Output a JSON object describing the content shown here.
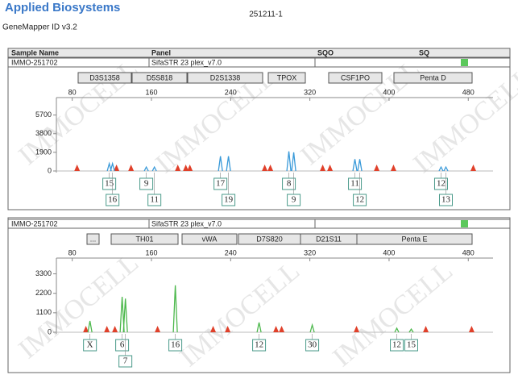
{
  "header": {
    "brand": "Applied Biosystems",
    "software": "GeneMapper ID v3.2",
    "run_id": "251211-1"
  },
  "table_header": [
    "Sample Name",
    "Panel",
    "SQO",
    "SQ"
  ],
  "watermark": "IMMOCELL",
  "chart_data": [
    {
      "type": "electropherogram",
      "sample_name": "IMMO-251702",
      "panel_name": "SifaSTR 23 plex_v7.0",
      "markers": [
        "D3S1358",
        "D5S818",
        "D2S1338",
        "TPOX",
        "CSF1PO",
        "Penta D"
      ],
      "xlim": [
        64,
        505
      ],
      "xticks": [
        80,
        160,
        240,
        320,
        400,
        480
      ],
      "ylim": [
        0,
        7400
      ],
      "yticks": [
        0,
        1900,
        3800,
        5700
      ],
      "color": "#3a9ad9",
      "x": [
        117.4,
        120.7,
        154.8,
        163,
        229.7,
        237.8,
        298.8,
        303.7,
        365.5,
        370.4,
        452.5,
        457.4
      ],
      "values": [
        750,
        750,
        400,
        400,
        1500,
        1500,
        2000,
        1900,
        1200,
        1200,
        400,
        400
      ],
      "allele_labels": [
        "15",
        "16",
        "9",
        "11",
        "17",
        "19",
        "8",
        "9",
        "11",
        "12",
        "12",
        "13"
      ],
      "standard_color": "#e0402a",
      "standard_x": [
        84.9,
        124.7,
        139.4,
        186.6,
        194.7,
        198.8,
        274.4,
        280.1,
        333,
        340.3,
        387.5,
        404.5,
        485.1
      ]
    },
    {
      "type": "electropherogram",
      "sample_name": "IMMO-251702",
      "panel_name": "SifaSTR 23 plex_v7.0",
      "markers": [
        "...",
        "TH01",
        "vWA",
        "D7S820",
        "D21S11",
        "Penta E"
      ],
      "xlim": [
        64,
        505
      ],
      "xticks": [
        80,
        160,
        240,
        320,
        400,
        480
      ],
      "ylim": [
        0,
        4100
      ],
      "yticks": [
        0,
        1100,
        2200,
        3300
      ],
      "color": "#4cb84c",
      "x": [
        97.9,
        130.4,
        133.7,
        184.1,
        268.7,
        322.4,
        407.8,
        422.4
      ],
      "values": [
        640,
        2000,
        1900,
        2650,
        550,
        410,
        230,
        180
      ],
      "allele_labels": [
        "X",
        "6",
        "7",
        "16",
        "12",
        "30",
        "12",
        "15"
      ],
      "standard_color": "#e0402a",
      "standard_x": [
        93.8,
        115,
        123.1,
        166.2,
        222.3,
        237,
        285.8,
        291.5,
        367.1,
        437.1,
        483.4
      ]
    }
  ]
}
